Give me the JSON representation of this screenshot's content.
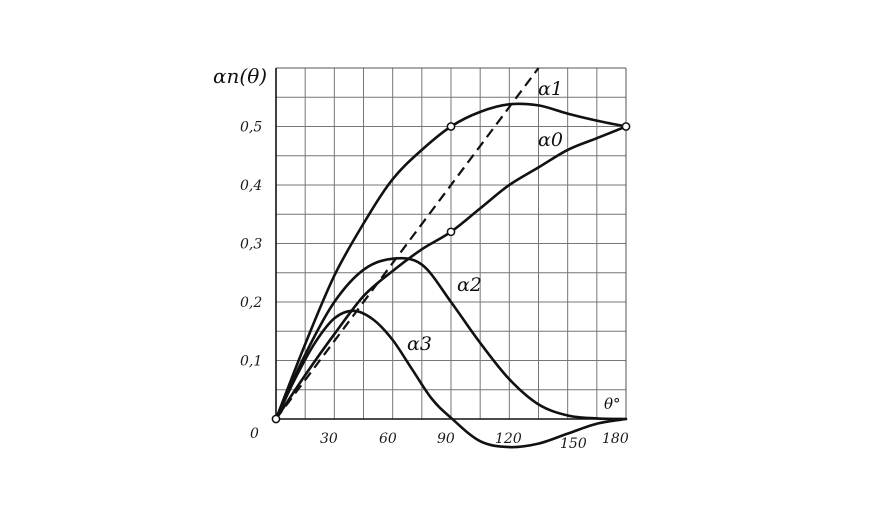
{
  "chart_data": {
    "type": "line",
    "ylabel": "αn(θ)",
    "xlabel": "θ°",
    "x_ticks": [
      "0",
      "30",
      "60",
      "90",
      "120",
      "150",
      "180"
    ],
    "y_ticks": [
      "0,1",
      "0,2",
      "0,3",
      "0,4",
      "0,5"
    ],
    "xlim": [
      0,
      180
    ],
    "ylim": [
      0,
      0.6
    ],
    "grid": true,
    "series": [
      {
        "name": "α1",
        "x": [
          0,
          15,
          30,
          45,
          60,
          75,
          90,
          105,
          120,
          135,
          150,
          165,
          180
        ],
        "y": [
          0,
          0.128,
          0.245,
          0.334,
          0.41,
          0.46,
          0.5,
          0.525,
          0.538,
          0.536,
          0.522,
          0.51,
          0.5
        ]
      },
      {
        "name": "α0",
        "x": [
          0,
          15,
          30,
          45,
          60,
          75,
          90,
          105,
          120,
          135,
          150,
          165,
          180
        ],
        "y": [
          0,
          0.075,
          0.145,
          0.21,
          0.253,
          0.29,
          0.32,
          0.36,
          0.4,
          0.43,
          0.46,
          0.48,
          0.5
        ]
      },
      {
        "name": "α2",
        "x": [
          0,
          15,
          30,
          45,
          60,
          75,
          90,
          105,
          120,
          135,
          150,
          165,
          180
        ],
        "y": [
          0,
          0.11,
          0.2,
          0.255,
          0.274,
          0.264,
          0.2,
          0.13,
          0.068,
          0.025,
          0.006,
          0.001,
          0
        ]
      },
      {
        "name": "α3",
        "x": [
          0,
          10,
          20,
          30,
          40,
          50,
          60,
          70,
          80,
          90,
          105,
          120,
          135,
          150,
          165,
          180
        ],
        "y": [
          0,
          0.07,
          0.13,
          0.172,
          0.185,
          0.17,
          0.135,
          0.085,
          0.035,
          0.002,
          -0.038,
          -0.048,
          -0.042,
          -0.025,
          -0.008,
          0
        ]
      },
      {
        "name": "",
        "style": "dashed",
        "x": [
          0,
          135
        ],
        "y": [
          0,
          0.6
        ]
      }
    ],
    "markers": [
      {
        "x": 0,
        "y": 0
      },
      {
        "x": 90,
        "y": 0.5
      },
      {
        "x": 90,
        "y": 0.32
      },
      {
        "x": 180,
        "y": 0.5
      }
    ]
  }
}
